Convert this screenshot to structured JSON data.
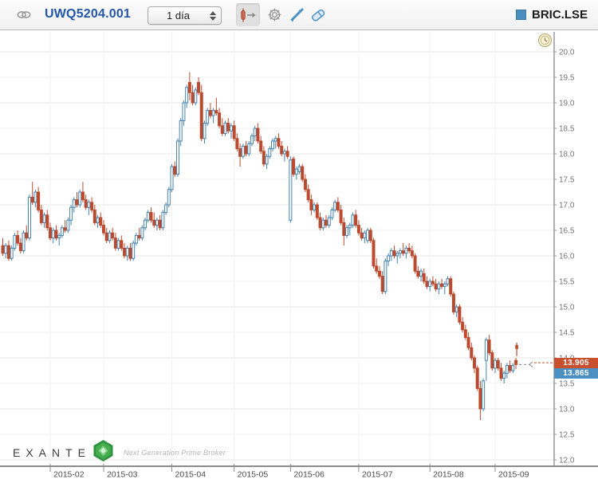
{
  "header": {
    "instrument": "UWQ5204.001",
    "timeframe": "1 día",
    "symbol": "BRIC.LSE"
  },
  "toolbar": {
    "order_tool": "order-line-tool",
    "settings": "chart-settings",
    "draw": "draw-tool",
    "erase": "erase-tool"
  },
  "price_labels": {
    "ask": {
      "value": "13.905",
      "color": "#c9502f"
    },
    "bid": {
      "value": "13.865",
      "color": "#4a90c2"
    }
  },
  "watermark": {
    "brand": "EXANTE",
    "tagline": "Next Generation Prime Broker"
  },
  "colors": {
    "up_candle": "#4783ad",
    "down_candle": "#bc4a2f",
    "grid_major": "#e7e7e7",
    "grid_minor": "#f2f2f2",
    "axis_line": "#666666",
    "bottom_axis_line": "#8c8c8c",
    "axis_text": "#737373",
    "month_text": "#4a4a4a",
    "dashed_line": "#8a8a8a"
  },
  "chart_data": {
    "type": "candlestick",
    "title": "UWQ5204.001 / BRIC.LSE, 1 día",
    "y_axis": {
      "min": 12.0,
      "max": 20.0,
      "tick_step": 0.5,
      "side": "right"
    },
    "x_axis": {
      "labels": [
        "2015-02",
        "2015-03",
        "2015-04",
        "2015-05",
        "2015-06",
        "2015-07",
        "2015-08",
        "2015-09"
      ],
      "tick_indices": [
        16,
        34,
        57,
        78,
        97,
        120,
        144,
        166
      ]
    },
    "grid": true,
    "last_price_line": 13.87,
    "sell_marker": {
      "index": 173,
      "price_top": 14.3,
      "price_bottom": 14.05
    },
    "candles": [
      [
        16.2,
        16.35,
        16.0,
        16.05
      ],
      [
        16.05,
        16.25,
        15.95,
        16.2
      ],
      [
        16.2,
        16.3,
        15.9,
        15.95
      ],
      [
        15.95,
        16.2,
        15.9,
        16.15
      ],
      [
        16.15,
        16.45,
        16.1,
        16.4
      ],
      [
        16.4,
        16.5,
        16.2,
        16.25
      ],
      [
        16.25,
        16.35,
        16.05,
        16.1
      ],
      [
        16.1,
        16.5,
        16.05,
        16.45
      ],
      [
        16.45,
        16.6,
        16.3,
        16.35
      ],
      [
        16.35,
        17.2,
        16.3,
        17.15
      ],
      [
        17.15,
        17.45,
        17.0,
        17.05
      ],
      [
        17.05,
        17.3,
        16.95,
        17.25
      ],
      [
        17.25,
        17.35,
        16.85,
        16.9
      ],
      [
        16.9,
        17.0,
        16.6,
        16.65
      ],
      [
        16.65,
        16.85,
        16.55,
        16.8
      ],
      [
        16.8,
        16.9,
        16.5,
        16.55
      ],
      [
        16.55,
        16.65,
        16.3,
        16.35
      ],
      [
        16.35,
        16.55,
        16.25,
        16.5
      ],
      [
        16.5,
        16.6,
        16.3,
        16.35
      ],
      [
        16.35,
        16.45,
        16.2,
        16.4
      ],
      [
        16.4,
        16.6,
        16.35,
        16.55
      ],
      [
        16.55,
        16.7,
        16.45,
        16.5
      ],
      [
        16.5,
        16.75,
        16.45,
        16.7
      ],
      [
        16.7,
        17.0,
        16.6,
        16.95
      ],
      [
        16.95,
        17.15,
        16.85,
        17.1
      ],
      [
        17.1,
        17.25,
        16.95,
        17.0
      ],
      [
        17.0,
        17.3,
        16.95,
        17.25
      ],
      [
        17.25,
        17.45,
        17.05,
        17.1
      ],
      [
        17.1,
        17.2,
        16.9,
        16.95
      ],
      [
        16.95,
        17.1,
        16.8,
        17.05
      ],
      [
        17.05,
        17.15,
        16.85,
        16.9
      ],
      [
        16.9,
        17.0,
        16.6,
        16.65
      ],
      [
        16.65,
        16.8,
        16.55,
        16.75
      ],
      [
        16.75,
        16.85,
        16.55,
        16.6
      ],
      [
        16.6,
        16.7,
        16.4,
        16.45
      ],
      [
        16.45,
        16.55,
        16.25,
        16.3
      ],
      [
        16.3,
        16.5,
        16.25,
        16.45
      ],
      [
        16.45,
        16.55,
        16.3,
        16.35
      ],
      [
        16.35,
        16.45,
        16.1,
        16.15
      ],
      [
        16.15,
        16.35,
        16.1,
        16.3
      ],
      [
        16.3,
        16.4,
        16.1,
        16.15
      ],
      [
        16.15,
        16.25,
        15.95,
        16.0
      ],
      [
        16.0,
        16.2,
        15.9,
        16.15
      ],
      [
        16.15,
        16.25,
        15.9,
        15.95
      ],
      [
        15.95,
        16.3,
        15.9,
        16.25
      ],
      [
        16.25,
        16.45,
        16.2,
        16.4
      ],
      [
        16.4,
        16.55,
        16.3,
        16.35
      ],
      [
        16.35,
        16.6,
        16.3,
        16.55
      ],
      [
        16.55,
        16.75,
        16.5,
        16.7
      ],
      [
        16.7,
        16.9,
        16.65,
        16.85
      ],
      [
        16.85,
        16.95,
        16.65,
        16.7
      ],
      [
        16.7,
        16.85,
        16.55,
        16.6
      ],
      [
        16.6,
        16.75,
        16.5,
        16.7
      ],
      [
        16.7,
        16.8,
        16.5,
        16.55
      ],
      [
        16.55,
        16.9,
        16.5,
        16.85
      ],
      [
        16.85,
        17.05,
        16.8,
        17.0
      ],
      [
        17.0,
        17.35,
        16.95,
        17.3
      ],
      [
        17.3,
        17.8,
        17.25,
        17.75
      ],
      [
        17.75,
        17.85,
        17.55,
        17.6
      ],
      [
        17.6,
        18.3,
        17.55,
        18.25
      ],
      [
        18.25,
        18.7,
        18.15,
        18.65
      ],
      [
        18.65,
        19.05,
        18.55,
        19.0
      ],
      [
        19.0,
        19.35,
        18.9,
        19.3
      ],
      [
        19.4,
        19.6,
        19.05,
        19.2
      ],
      [
        19.2,
        19.35,
        18.95,
        19.0
      ],
      [
        19.0,
        19.3,
        18.95,
        19.25
      ],
      [
        19.4,
        19.5,
        19.15,
        19.2
      ],
      [
        19.2,
        19.35,
        18.25,
        18.3
      ],
      [
        18.3,
        18.65,
        18.2,
        18.6
      ],
      [
        18.6,
        18.9,
        18.55,
        18.85
      ],
      [
        18.85,
        19.0,
        18.7,
        18.75
      ],
      [
        18.75,
        18.9,
        18.6,
        18.85
      ],
      [
        18.85,
        19.1,
        18.75,
        18.8
      ],
      [
        18.8,
        18.9,
        18.5,
        18.55
      ],
      [
        18.55,
        18.7,
        18.35,
        18.4
      ],
      [
        18.4,
        18.65,
        18.35,
        18.6
      ],
      [
        18.6,
        18.7,
        18.4,
        18.45
      ],
      [
        18.45,
        18.6,
        18.3,
        18.55
      ],
      [
        18.55,
        18.65,
        18.25,
        18.3
      ],
      [
        18.3,
        18.4,
        18.05,
        18.1
      ],
      [
        18.1,
        18.2,
        17.75,
        17.95
      ],
      [
        17.95,
        18.2,
        17.9,
        18.15
      ],
      [
        18.15,
        18.25,
        17.95,
        18.0
      ],
      [
        18.0,
        18.25,
        17.95,
        18.2
      ],
      [
        18.2,
        18.4,
        18.15,
        18.35
      ],
      [
        18.35,
        18.55,
        18.25,
        18.5
      ],
      [
        18.5,
        18.6,
        18.2,
        18.25
      ],
      [
        18.25,
        18.35,
        18.0,
        18.05
      ],
      [
        18.05,
        18.15,
        17.75,
        17.8
      ],
      [
        17.8,
        18.0,
        17.7,
        17.95
      ],
      [
        17.95,
        18.15,
        17.9,
        18.1
      ],
      [
        18.1,
        18.3,
        18.05,
        18.25
      ],
      [
        18.25,
        18.35,
        18.1,
        18.3
      ],
      [
        18.3,
        18.4,
        18.1,
        18.15
      ],
      [
        18.15,
        18.25,
        17.95,
        18.0
      ],
      [
        18.0,
        18.1,
        17.85,
        18.05
      ],
      [
        18.05,
        18.15,
        17.9,
        17.95
      ],
      [
        16.7,
        17.95,
        16.65,
        17.88
      ],
      [
        17.9,
        17.95,
        17.55,
        17.6
      ],
      [
        17.6,
        17.75,
        17.5,
        17.7
      ],
      [
        17.65,
        17.8,
        17.6,
        17.75
      ],
      [
        17.75,
        17.8,
        17.45,
        17.5
      ],
      [
        17.5,
        17.6,
        17.25,
        17.3
      ],
      [
        17.3,
        17.4,
        17.05,
        17.1
      ],
      [
        17.1,
        17.2,
        16.8,
        16.9
      ],
      [
        16.9,
        17.05,
        16.85,
        17.0
      ],
      [
        17.0,
        17.05,
        16.7,
        16.75
      ],
      [
        16.75,
        16.85,
        16.5,
        16.55
      ],
      [
        16.55,
        16.75,
        16.5,
        16.7
      ],
      [
        16.7,
        16.8,
        16.55,
        16.6
      ],
      [
        16.6,
        16.8,
        16.55,
        16.75
      ],
      [
        16.75,
        16.95,
        16.7,
        16.9
      ],
      [
        16.9,
        17.1,
        16.85,
        17.05
      ],
      [
        17.05,
        17.15,
        16.85,
        16.9
      ],
      [
        16.9,
        17.0,
        16.6,
        16.65
      ],
      [
        16.65,
        16.75,
        16.2,
        16.4
      ],
      [
        16.4,
        16.6,
        16.35,
        16.55
      ],
      [
        16.55,
        16.65,
        16.4,
        16.6
      ],
      [
        16.6,
        16.85,
        16.55,
        16.8
      ],
      [
        16.8,
        16.9,
        16.55,
        16.6
      ],
      [
        16.6,
        16.7,
        16.4,
        16.45
      ],
      [
        16.45,
        16.55,
        16.3,
        16.35
      ],
      [
        16.35,
        16.5,
        16.25,
        16.45
      ],
      [
        16.3,
        16.55,
        16.25,
        16.5
      ],
      [
        16.5,
        16.55,
        16.25,
        16.3
      ],
      [
        16.3,
        16.35,
        15.75,
        15.8
      ],
      [
        15.8,
        15.95,
        15.65,
        15.7
      ],
      [
        15.7,
        15.8,
        15.55,
        15.6
      ],
      [
        15.6,
        15.7,
        15.25,
        15.3
      ],
      [
        15.3,
        15.95,
        15.25,
        15.9
      ],
      [
        15.9,
        16.05,
        15.8,
        16.0
      ],
      [
        16.0,
        16.15,
        15.9,
        16.1
      ],
      [
        16.1,
        16.2,
        15.95,
        16.0
      ],
      [
        16.0,
        16.1,
        15.85,
        16.05
      ],
      [
        16.05,
        16.15,
        15.95,
        16.1
      ],
      [
        16.1,
        16.25,
        16.0,
        16.05
      ],
      [
        16.05,
        16.2,
        15.95,
        16.15
      ],
      [
        16.15,
        16.25,
        16.05,
        16.1
      ],
      [
        16.1,
        16.2,
        15.95,
        16.0
      ],
      [
        16.0,
        16.05,
        15.65,
        15.7
      ],
      [
        15.7,
        15.8,
        15.55,
        15.6
      ],
      [
        15.6,
        15.75,
        15.5,
        15.7
      ],
      [
        15.65,
        15.75,
        15.45,
        15.5
      ],
      [
        15.5,
        15.6,
        15.35,
        15.4
      ],
      [
        15.4,
        15.55,
        15.3,
        15.5
      ],
      [
        15.5,
        15.6,
        15.4,
        15.45
      ],
      [
        15.45,
        15.55,
        15.3,
        15.35
      ],
      [
        15.35,
        15.5,
        15.25,
        15.45
      ],
      [
        15.45,
        15.55,
        15.35,
        15.4
      ],
      [
        15.4,
        15.5,
        15.25,
        15.45
      ],
      [
        15.45,
        15.6,
        15.4,
        15.55
      ],
      [
        15.55,
        15.6,
        15.2,
        15.25
      ],
      [
        15.25,
        15.3,
        14.85,
        14.9
      ],
      [
        14.9,
        15.05,
        14.8,
        15.0
      ],
      [
        15.0,
        15.05,
        14.65,
        14.7
      ],
      [
        14.7,
        14.8,
        14.5,
        14.55
      ],
      [
        14.55,
        14.65,
        14.35,
        14.4
      ],
      [
        14.4,
        14.5,
        14.15,
        14.2
      ],
      [
        14.2,
        14.3,
        13.95,
        14.0
      ],
      [
        14.0,
        14.05,
        13.7,
        13.8
      ],
      [
        13.8,
        13.85,
        13.35,
        13.4
      ],
      [
        13.4,
        13.55,
        12.78,
        13.0
      ],
      [
        13.0,
        13.6,
        12.95,
        13.55
      ],
      [
        13.95,
        14.4,
        13.55,
        14.35
      ],
      [
        14.35,
        14.45,
        14.05,
        14.1
      ],
      [
        14.1,
        14.15,
        13.75,
        13.8
      ],
      [
        13.8,
        14.0,
        13.7,
        13.95
      ],
      [
        13.95,
        14.0,
        13.75,
        13.8
      ],
      [
        13.8,
        13.9,
        13.55,
        13.6
      ],
      [
        13.6,
        13.75,
        13.5,
        13.7
      ],
      [
        13.7,
        13.9,
        13.6,
        13.85
      ],
      [
        13.85,
        13.95,
        13.7,
        13.75
      ],
      [
        13.75,
        13.9,
        13.7,
        13.85
      ],
      [
        13.95,
        14.0,
        13.78,
        13.87
      ]
    ]
  }
}
